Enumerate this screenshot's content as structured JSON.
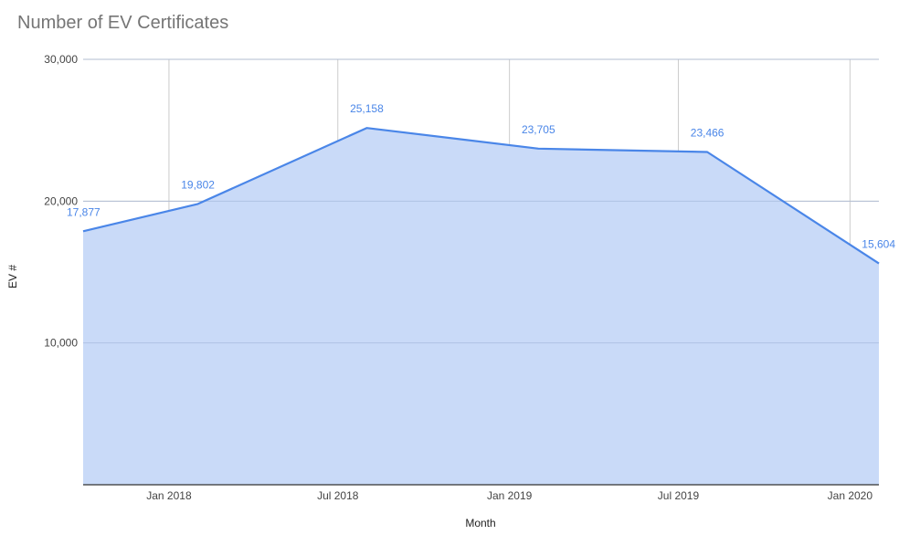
{
  "chart_data": {
    "type": "area",
    "title": "Number of EV Certificates",
    "xlabel": "Month",
    "ylabel": "EV #",
    "ylim": [
      0,
      30000
    ],
    "y_ticks": [
      10000,
      20000,
      30000
    ],
    "y_tick_labels": [
      "10,000",
      "20,000",
      "30,000"
    ],
    "x_ticks": [
      "2018-01-01",
      "2018-07-01",
      "2019-01-01",
      "2019-07-01",
      "2020-01-01"
    ],
    "x_tick_labels": [
      "Jan 2018",
      "Jul 2018",
      "Jan 2019",
      "Jul 2019",
      "Jan 2020"
    ],
    "xlim": [
      "2017-10-01",
      "2020-02-01"
    ],
    "grid": true,
    "series": [
      {
        "x": [
          "2017-10-01",
          "2018-02-01",
          "2018-08-01",
          "2019-02-01",
          "2019-08-01",
          "2020-02-01"
        ],
        "values": [
          17877,
          19802,
          25158,
          23705,
          23466,
          15604
        ],
        "labels": [
          "17,877",
          "19,802",
          "25,158",
          "23,705",
          "23,466",
          "15,604"
        ],
        "color": "#4a86e8",
        "fill": "#c9daf8"
      }
    ]
  }
}
